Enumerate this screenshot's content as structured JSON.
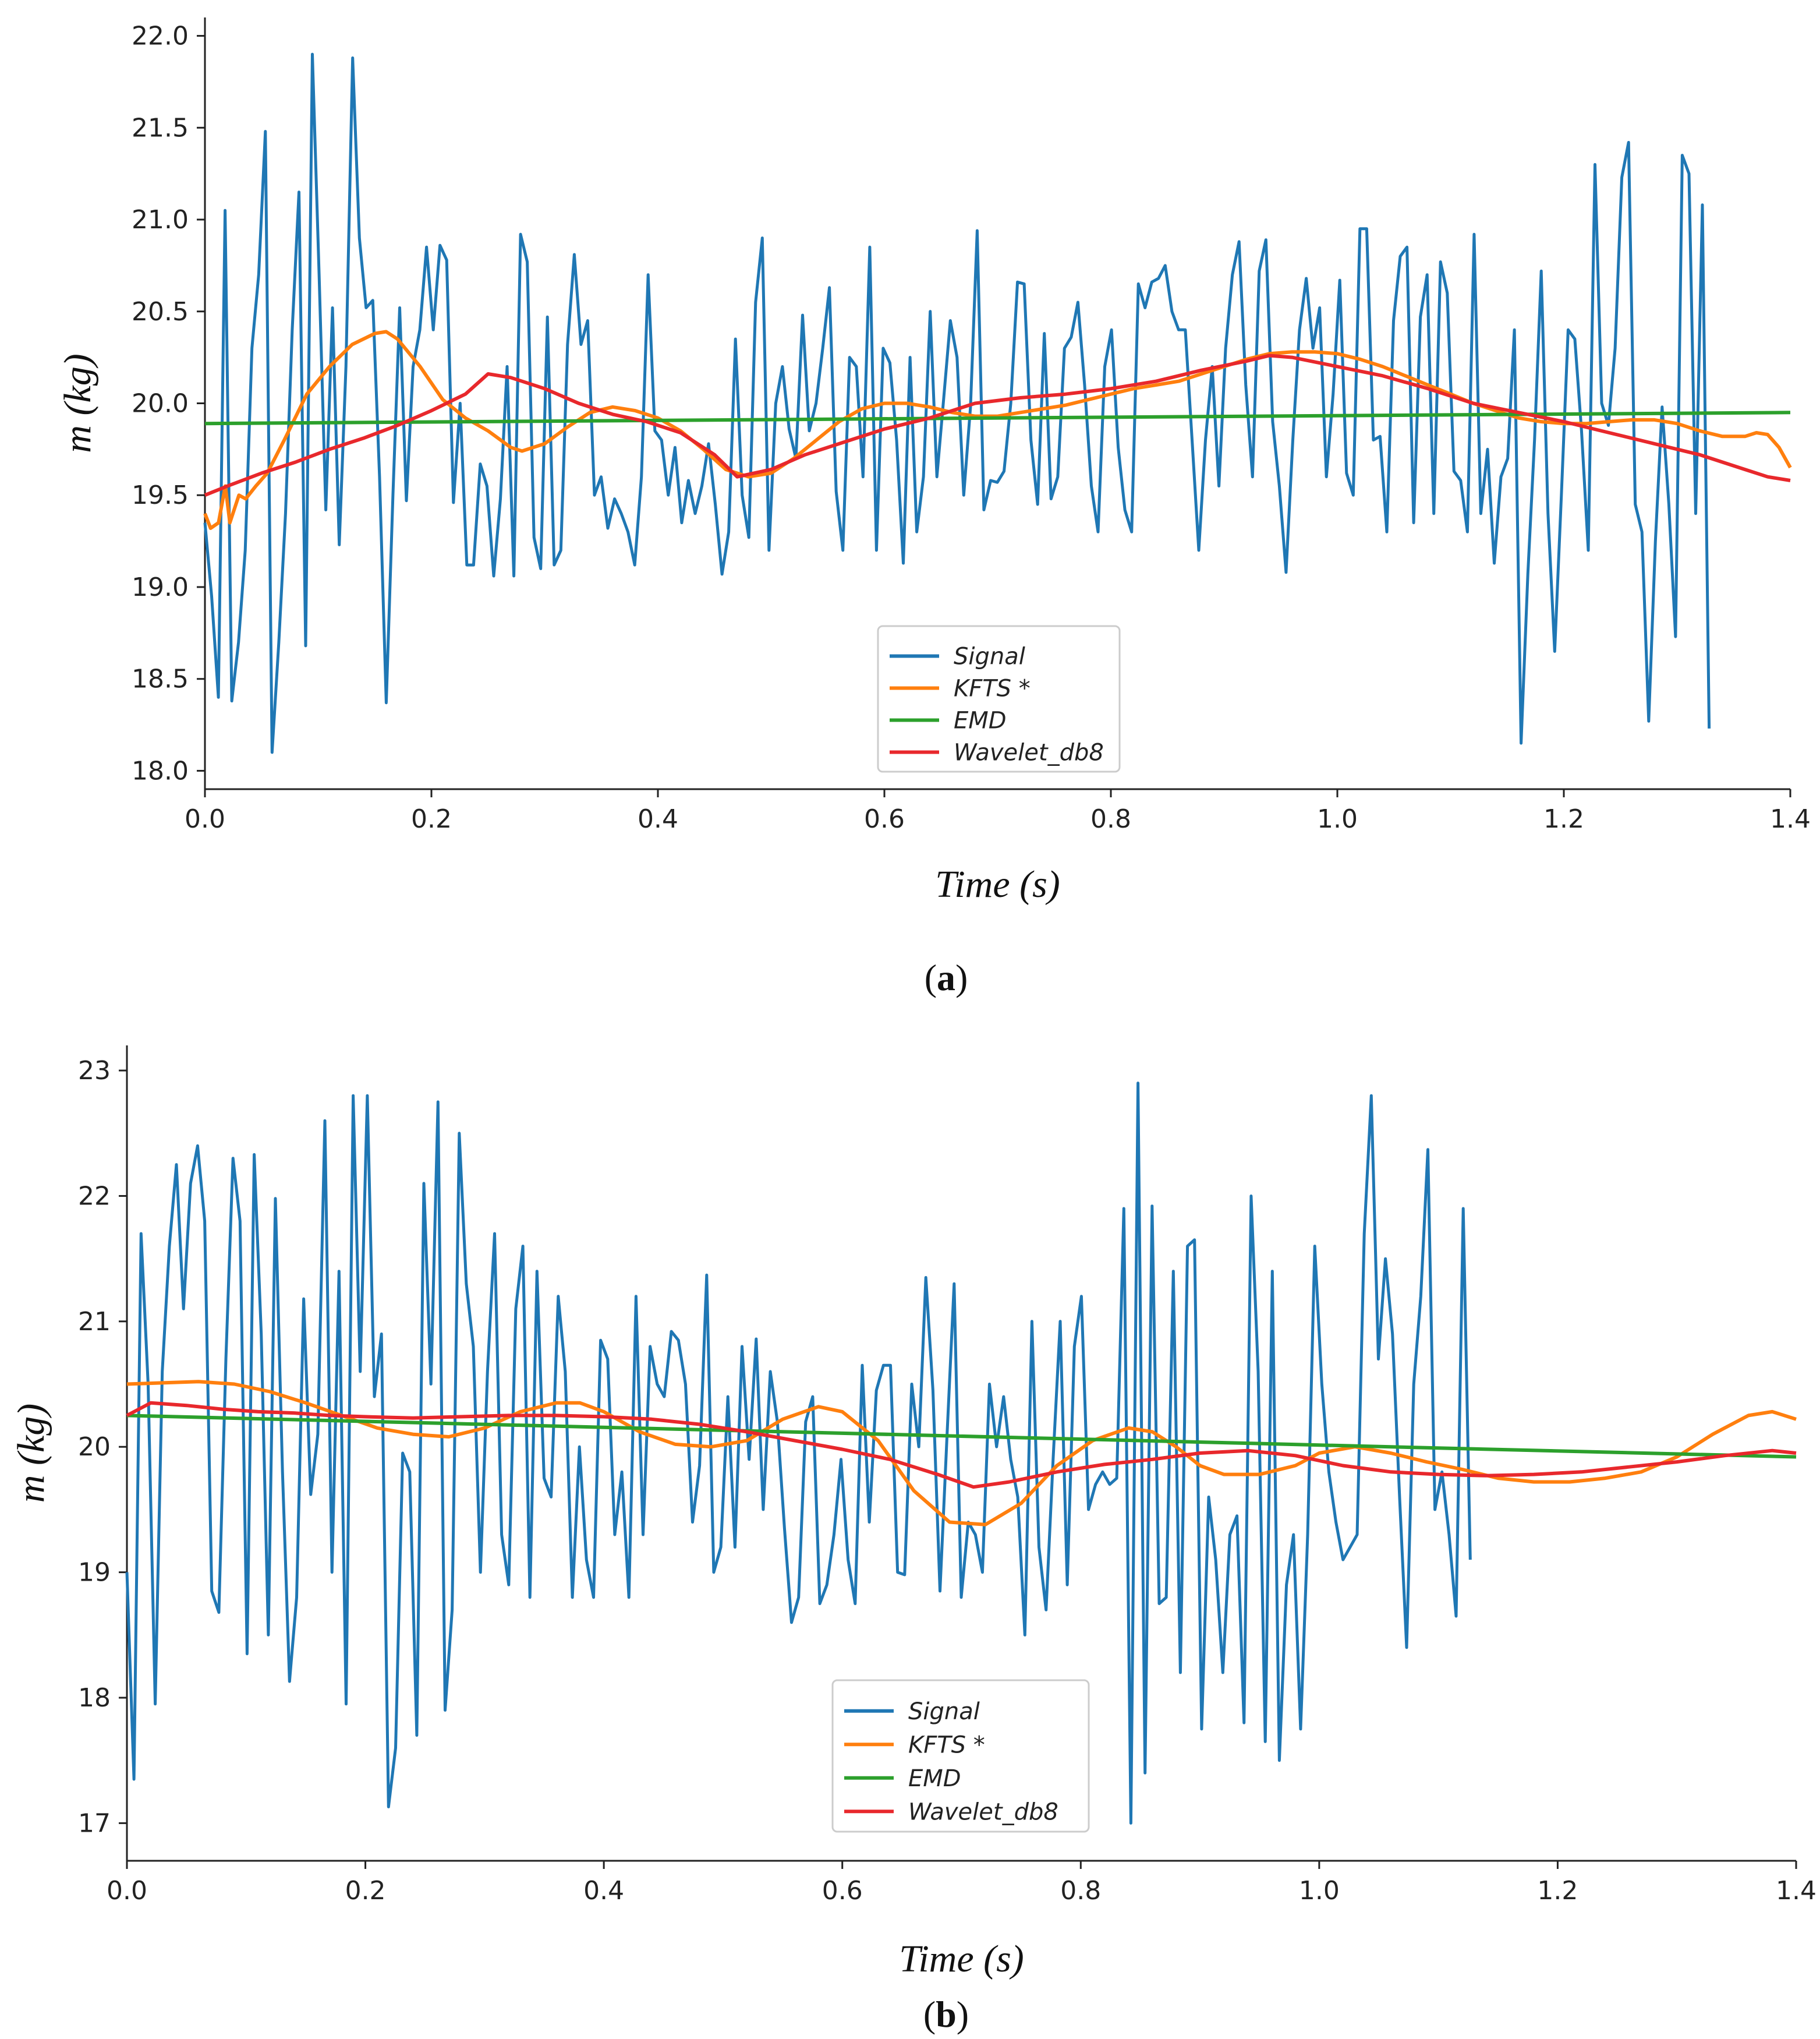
{
  "figure": {
    "panel_labels": [
      "a",
      "b"
    ]
  },
  "chart_data": [
    {
      "type": "line",
      "panel": "a",
      "xlabel": "Time (s)",
      "ylabel": "m (kg)",
      "xlim": [
        0.0,
        1.4
      ],
      "ylim": [
        17.9,
        22.1
      ],
      "xticks": [
        0.0,
        0.2,
        0.4,
        0.6,
        0.8,
        1.0,
        1.2,
        1.4
      ],
      "xtick_labels": [
        "0.0",
        "0.2",
        "0.4",
        "0.6",
        "0.8",
        "1.0",
        "1.2",
        "1.4"
      ],
      "yticks": [
        18.0,
        18.5,
        19.0,
        19.5,
        20.0,
        20.5,
        21.0,
        21.5,
        22.0
      ],
      "ytick_labels": [
        "18.0",
        "18.5",
        "19.0",
        "19.5",
        "20.0",
        "20.5",
        "21.0",
        "21.5",
        "22.0"
      ],
      "legend": {
        "position": "lower-center",
        "entries": [
          "Signal",
          "KFTS *",
          "EMD",
          "Wavelet_db8"
        ]
      },
      "series": [
        {
          "name": "Signal",
          "color": "#1f77b4",
          "x0": 0.0,
          "dx": 0.00593,
          "values": [
            19.35,
            18.95,
            18.4,
            21.05,
            18.38,
            18.7,
            19.2,
            20.3,
            20.7,
            21.48,
            18.1,
            18.7,
            19.4,
            20.4,
            21.15,
            18.68,
            21.9,
            20.7,
            19.42,
            20.52,
            19.23,
            20.2,
            21.88,
            20.9,
            20.52,
            20.56,
            19.6,
            18.37,
            19.5,
            20.52,
            19.47,
            20.2,
            20.4,
            20.85,
            20.4,
            20.86,
            20.78,
            19.46,
            20.0,
            19.12,
            19.12,
            19.67,
            19.55,
            19.06,
            19.48,
            20.2,
            19.06,
            20.92,
            20.77,
            19.27,
            19.1,
            20.47,
            19.12,
            19.2,
            20.32,
            20.81,
            20.32,
            20.45,
            19.5,
            19.6,
            19.32,
            19.48,
            19.4,
            19.3,
            19.12,
            19.6,
            20.7,
            19.85,
            19.8,
            19.5,
            19.76,
            19.35,
            19.58,
            19.4,
            19.55,
            19.78,
            19.45,
            19.07,
            19.3,
            20.35,
            19.5,
            19.27,
            20.55,
            20.9,
            19.2,
            20.0,
            20.2,
            19.86,
            19.7,
            20.48,
            19.85,
            20.0,
            20.3,
            20.63,
            19.52,
            19.2,
            20.25,
            20.2,
            19.6,
            20.85,
            19.2,
            20.3,
            20.22,
            19.8,
            19.13,
            20.25,
            19.3,
            19.6,
            20.5,
            19.6,
            20.02,
            20.45,
            20.25,
            19.5,
            19.98,
            20.94,
            19.42,
            19.58,
            19.57,
            19.63,
            20.0,
            20.66,
            20.65,
            19.8,
            19.45,
            20.38,
            19.48,
            19.6,
            20.3,
            20.36,
            20.55,
            20.1,
            19.55,
            19.3,
            20.2,
            20.4,
            19.76,
            19.42,
            19.3,
            20.65,
            20.52,
            20.66,
            20.68,
            20.75,
            20.5,
            20.4,
            20.4,
            19.8,
            19.2,
            19.8,
            20.2,
            19.55,
            20.3,
            20.7,
            20.88,
            20.1,
            19.6,
            20.72,
            20.89,
            19.9,
            19.55,
            19.08,
            19.8,
            20.4,
            20.68,
            20.3,
            20.52,
            19.6,
            20.05,
            20.67,
            19.62,
            19.5,
            20.95,
            20.95,
            19.8,
            19.82,
            19.3,
            20.45,
            20.8,
            20.85,
            19.35,
            20.47,
            20.7,
            19.4,
            20.77,
            20.6,
            19.63,
            19.58,
            19.3,
            20.92,
            19.4,
            19.75,
            19.13,
            19.6,
            19.7,
            20.4,
            18.15,
            19.07,
            19.8,
            20.72,
            19.4,
            18.65,
            19.5,
            20.4,
            20.35,
            19.85,
            19.2,
            21.3,
            20.0,
            19.88,
            20.3,
            21.23,
            21.42,
            19.45,
            19.3,
            18.27,
            19.25,
            19.98,
            19.45,
            18.73,
            21.35,
            21.25,
            19.4,
            21.08,
            18.23
          ]
        },
        {
          "name": "KFTS *",
          "color": "#ff7f0e",
          "x": [
            0.0,
            0.005,
            0.012,
            0.018,
            0.022,
            0.03,
            0.036,
            0.045,
            0.055,
            0.07,
            0.09,
            0.11,
            0.13,
            0.15,
            0.16,
            0.17,
            0.19,
            0.21,
            0.23,
            0.25,
            0.27,
            0.28,
            0.3,
            0.32,
            0.34,
            0.36,
            0.38,
            0.4,
            0.42,
            0.44,
            0.46,
            0.48,
            0.5,
            0.52,
            0.54,
            0.56,
            0.58,
            0.6,
            0.62,
            0.64,
            0.66,
            0.68,
            0.7,
            0.72,
            0.74,
            0.76,
            0.78,
            0.8,
            0.82,
            0.84,
            0.86,
            0.88,
            0.9,
            0.92,
            0.94,
            0.96,
            0.98,
            1.0,
            1.02,
            1.04,
            1.06,
            1.08,
            1.1,
            1.12,
            1.14,
            1.16,
            1.18,
            1.2,
            1.22,
            1.24,
            1.26,
            1.28,
            1.3,
            1.32,
            1.34,
            1.36,
            1.37,
            1.38,
            1.39,
            1.4
          ],
          "values": [
            19.4,
            19.32,
            19.35,
            19.55,
            19.35,
            19.5,
            19.48,
            19.55,
            19.62,
            19.8,
            20.05,
            20.2,
            20.32,
            20.38,
            20.39,
            20.35,
            20.2,
            20.02,
            19.92,
            19.85,
            19.76,
            19.74,
            19.78,
            19.87,
            19.95,
            19.98,
            19.96,
            19.92,
            19.85,
            19.75,
            19.64,
            19.6,
            19.62,
            19.7,
            19.8,
            19.9,
            19.97,
            20.0,
            20.0,
            19.98,
            19.95,
            19.93,
            19.93,
            19.95,
            19.97,
            19.99,
            20.02,
            20.05,
            20.08,
            20.1,
            20.12,
            20.16,
            20.2,
            20.24,
            20.27,
            20.28,
            20.28,
            20.27,
            20.24,
            20.2,
            20.15,
            20.1,
            20.05,
            20.0,
            19.96,
            19.92,
            19.9,
            19.89,
            19.89,
            19.9,
            19.91,
            19.91,
            19.89,
            19.85,
            19.82,
            19.82,
            19.84,
            19.83,
            19.76,
            19.65
          ]
        },
        {
          "name": "EMD",
          "color": "#2ca02c",
          "x": [
            0.0,
            1.4
          ],
          "values": [
            19.89,
            19.95
          ]
        },
        {
          "name": "Wavelet_db8",
          "color": "#e8282c",
          "x": [
            0.0,
            0.02,
            0.05,
            0.08,
            0.11,
            0.14,
            0.17,
            0.2,
            0.23,
            0.25,
            0.27,
            0.3,
            0.33,
            0.36,
            0.39,
            0.42,
            0.45,
            0.47,
            0.5,
            0.53,
            0.56,
            0.6,
            0.64,
            0.68,
            0.72,
            0.76,
            0.8,
            0.84,
            0.88,
            0.92,
            0.94,
            0.96,
            1.0,
            1.04,
            1.08,
            1.12,
            1.16,
            1.2,
            1.24,
            1.28,
            1.32,
            1.36,
            1.38,
            1.4
          ],
          "values": [
            19.5,
            19.55,
            19.62,
            19.68,
            19.75,
            19.81,
            19.88,
            19.96,
            20.05,
            20.16,
            20.14,
            20.08,
            20.0,
            19.94,
            19.9,
            19.84,
            19.72,
            19.6,
            19.64,
            19.72,
            19.78,
            19.86,
            19.92,
            20.0,
            20.03,
            20.05,
            20.08,
            20.12,
            20.18,
            20.23,
            20.26,
            20.25,
            20.2,
            20.15,
            20.08,
            20.0,
            19.95,
            19.9,
            19.84,
            19.78,
            19.72,
            19.64,
            19.6,
            19.58
          ]
        }
      ]
    },
    {
      "type": "line",
      "panel": "b",
      "xlabel": "Time (s)",
      "ylabel": "m (kg)",
      "xlim": [
        0.0,
        1.4
      ],
      "ylim": [
        16.7,
        23.2
      ],
      "xticks": [
        0.0,
        0.2,
        0.4,
        0.6,
        0.8,
        1.0,
        1.2,
        1.4
      ],
      "xtick_labels": [
        "0.0",
        "0.2",
        "0.4",
        "0.6",
        "0.8",
        "1.0",
        "1.2",
        "1.4"
      ],
      "yticks": [
        17,
        18,
        19,
        20,
        21,
        22,
        23
      ],
      "ytick_labels": [
        "17",
        "18",
        "19",
        "20",
        "21",
        "22",
        "23"
      ],
      "legend": {
        "position": "lower-center",
        "entries": [
          "Signal",
          "KFTS *",
          "EMD",
          "Wavelet_db8"
        ]
      },
      "series": [
        {
          "name": "Signal",
          "color": "#1f77b4",
          "x0": 0.0,
          "dx": 0.00593,
          "values": [
            19.0,
            17.35,
            21.7,
            20.5,
            17.95,
            20.6,
            21.6,
            22.25,
            21.1,
            22.1,
            22.4,
            21.8,
            18.85,
            18.68,
            20.7,
            22.3,
            21.8,
            18.35,
            22.33,
            20.9,
            18.5,
            21.98,
            19.8,
            18.13,
            18.8,
            21.18,
            19.62,
            20.1,
            22.6,
            19.0,
            21.4,
            17.95,
            22.8,
            20.6,
            22.8,
            20.4,
            20.9,
            17.13,
            17.6,
            19.95,
            19.8,
            17.7,
            22.1,
            20.5,
            22.75,
            17.9,
            18.7,
            22.5,
            21.3,
            20.8,
            19.0,
            20.6,
            21.7,
            19.3,
            18.9,
            21.1,
            21.6,
            18.8,
            21.4,
            19.75,
            19.6,
            21.2,
            20.6,
            18.8,
            20.0,
            19.1,
            18.8,
            20.85,
            20.7,
            19.3,
            19.8,
            18.8,
            21.2,
            19.3,
            20.8,
            20.5,
            20.4,
            20.92,
            20.85,
            20.5,
            19.4,
            19.85,
            21.37,
            19.0,
            19.2,
            20.4,
            19.2,
            20.8,
            19.9,
            20.86,
            19.5,
            20.6,
            20.2,
            19.35,
            18.6,
            18.8,
            20.2,
            20.4,
            18.75,
            18.9,
            19.3,
            19.9,
            19.1,
            18.75,
            20.65,
            19.4,
            20.45,
            20.65,
            20.65,
            19.0,
            18.98,
            20.5,
            20.0,
            21.35,
            20.45,
            18.85,
            20.1,
            21.3,
            18.8,
            19.4,
            19.3,
            19.0,
            20.5,
            20.0,
            20.4,
            19.9,
            19.6,
            18.5,
            21.0,
            19.2,
            18.7,
            19.9,
            21.0,
            18.9,
            20.8,
            21.2,
            19.5,
            19.7,
            19.8,
            19.7,
            19.75,
            21.9,
            17.0,
            22.9,
            17.4,
            21.92,
            18.75,
            18.8,
            21.4,
            18.2,
            21.6,
            21.65,
            17.75,
            19.6,
            19.1,
            18.2,
            19.3,
            19.45,
            17.8,
            22.0,
            20.6,
            17.65,
            21.4,
            17.5,
            18.9,
            19.3,
            17.75,
            19.3,
            21.6,
            20.5,
            19.8,
            19.4,
            19.1,
            19.2,
            19.3,
            21.7,
            22.8,
            20.7,
            21.5,
            20.9,
            19.6,
            18.4,
            20.5,
            21.2,
            22.37,
            19.5,
            19.8,
            19.3,
            18.65,
            21.9,
            19.1
          ]
        },
        {
          "name": "KFTS *",
          "color": "#ff7f0e",
          "x": [
            0.0,
            0.03,
            0.06,
            0.09,
            0.12,
            0.15,
            0.18,
            0.21,
            0.24,
            0.27,
            0.3,
            0.33,
            0.36,
            0.38,
            0.4,
            0.43,
            0.46,
            0.49,
            0.52,
            0.55,
            0.58,
            0.6,
            0.63,
            0.66,
            0.69,
            0.72,
            0.75,
            0.78,
            0.81,
            0.84,
            0.86,
            0.88,
            0.9,
            0.92,
            0.95,
            0.98,
            1.0,
            1.03,
            1.06,
            1.09,
            1.12,
            1.15,
            1.18,
            1.21,
            1.24,
            1.27,
            1.3,
            1.33,
            1.36,
            1.38,
            1.4
          ],
          "values": [
            20.5,
            20.51,
            20.52,
            20.5,
            20.44,
            20.35,
            20.25,
            20.15,
            20.1,
            20.08,
            20.15,
            20.28,
            20.35,
            20.35,
            20.28,
            20.12,
            20.02,
            20.0,
            20.05,
            20.22,
            20.32,
            20.28,
            20.05,
            19.65,
            19.4,
            19.38,
            19.55,
            19.85,
            20.05,
            20.15,
            20.12,
            20.0,
            19.85,
            19.78,
            19.78,
            19.85,
            19.95,
            20.0,
            19.95,
            19.88,
            19.82,
            19.75,
            19.72,
            19.72,
            19.75,
            19.8,
            19.92,
            20.1,
            20.25,
            20.28,
            20.22
          ]
        },
        {
          "name": "EMD",
          "color": "#2ca02c",
          "x": [
            0.0,
            1.4
          ],
          "values": [
            20.25,
            19.92
          ]
        },
        {
          "name": "Wavelet_db8",
          "color": "#e8282c",
          "x": [
            0.0,
            0.02,
            0.05,
            0.08,
            0.11,
            0.14,
            0.17,
            0.2,
            0.24,
            0.28,
            0.32,
            0.36,
            0.4,
            0.44,
            0.48,
            0.52,
            0.56,
            0.6,
            0.64,
            0.68,
            0.71,
            0.74,
            0.78,
            0.82,
            0.86,
            0.9,
            0.94,
            0.98,
            1.02,
            1.06,
            1.1,
            1.14,
            1.18,
            1.22,
            1.26,
            1.3,
            1.34,
            1.38,
            1.4
          ],
          "values": [
            20.25,
            20.35,
            20.33,
            20.3,
            20.28,
            20.27,
            20.25,
            20.24,
            20.23,
            20.24,
            20.25,
            20.25,
            20.24,
            20.22,
            20.18,
            20.12,
            20.05,
            19.98,
            19.9,
            19.78,
            19.68,
            19.72,
            19.8,
            19.86,
            19.9,
            19.95,
            19.97,
            19.93,
            19.85,
            19.8,
            19.78,
            19.77,
            19.78,
            19.8,
            19.84,
            19.88,
            19.93,
            19.97,
            19.95
          ]
        }
      ]
    }
  ]
}
